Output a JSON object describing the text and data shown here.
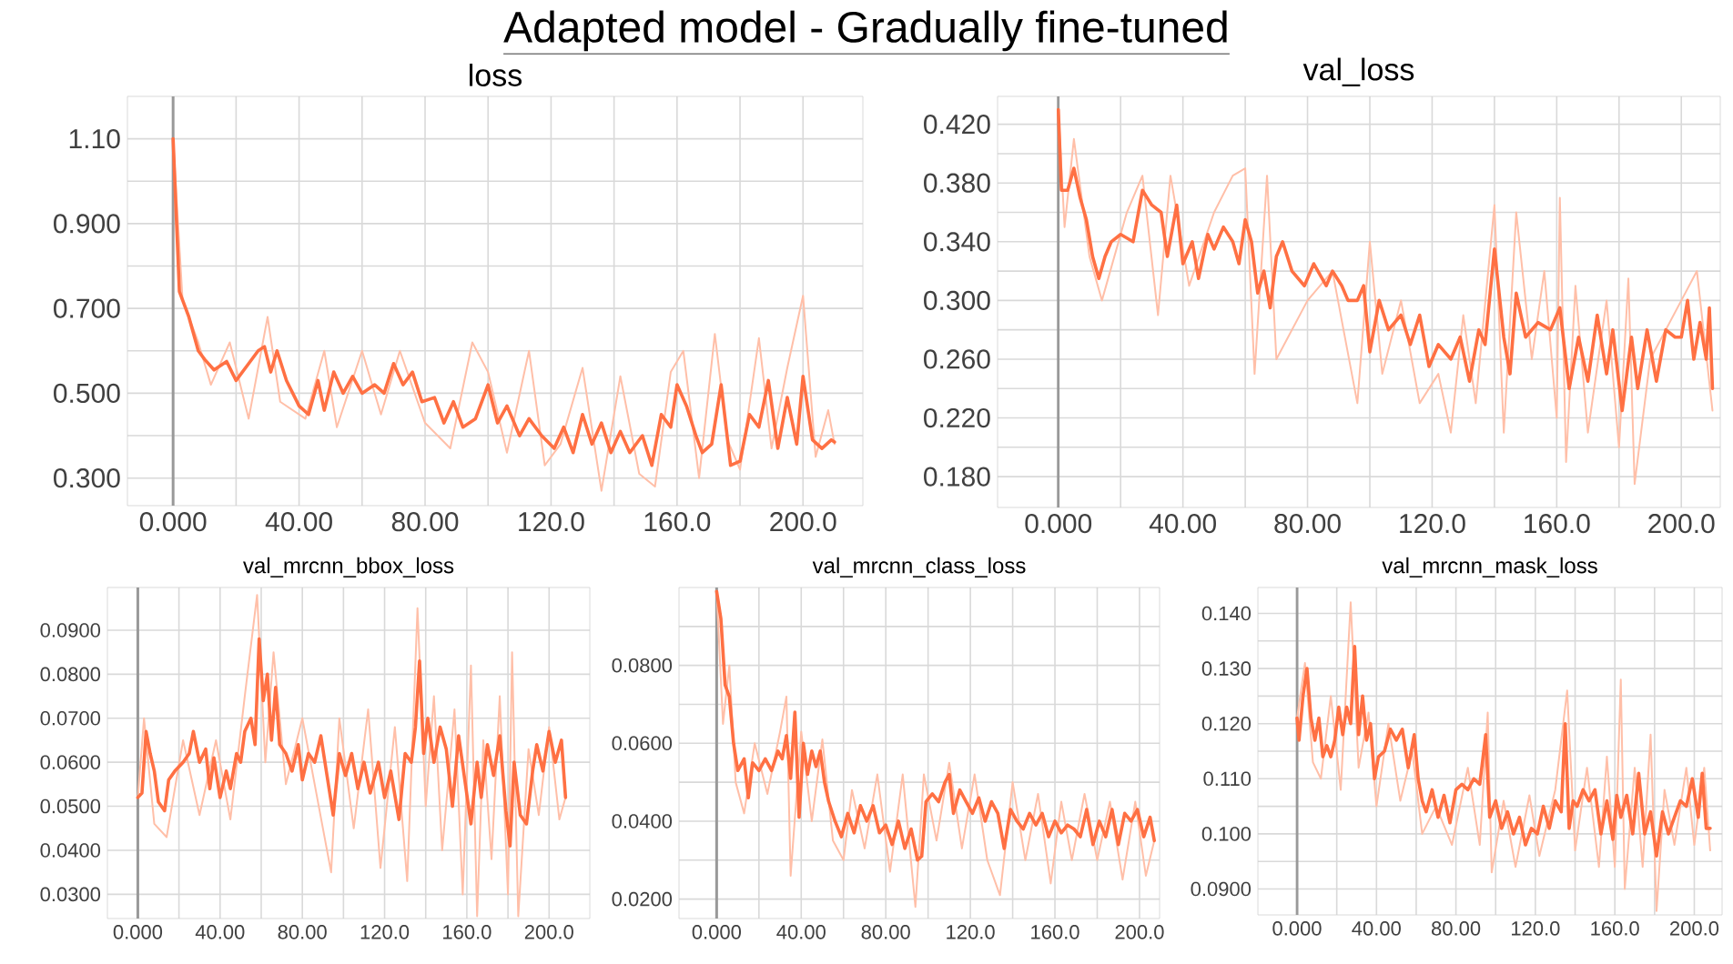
{
  "chart_data": [
    {
      "type": "line",
      "title": "Adapted model -  Gradually fine-tuned",
      "subtitle": "loss",
      "grid": true,
      "xlim": [
        -14.5,
        219
      ],
      "ylim": [
        0.235,
        1.2
      ],
      "xticks": [
        {
          "value": 0,
          "label": "0.000"
        },
        {
          "value": 20,
          "label": null
        },
        {
          "value": 40,
          "label": "40.00"
        },
        {
          "value": 60,
          "label": null
        },
        {
          "value": 80,
          "label": "80.00"
        },
        {
          "value": 100,
          "label": null
        },
        {
          "value": 120,
          "label": "120.0"
        },
        {
          "value": 140,
          "label": null
        },
        {
          "value": 160,
          "label": "160.0"
        },
        {
          "value": 180,
          "label": null
        },
        {
          "value": 200,
          "label": "200.0"
        }
      ],
      "yticks": [
        {
          "value": 0.3,
          "label": "0.300"
        },
        {
          "value": 0.4,
          "label": null
        },
        {
          "value": 0.5,
          "label": "0.500"
        },
        {
          "value": 0.6,
          "label": null
        },
        {
          "value": 0.7,
          "label": "0.700"
        },
        {
          "value": 0.8,
          "label": null
        },
        {
          "value": 0.9,
          "label": "0.900"
        },
        {
          "value": 1.0,
          "label": null
        },
        {
          "value": 1.1,
          "label": "1.10"
        }
      ],
      "ref_lines": [
        {
          "axis": "x",
          "value": 0,
          "color": "#999999"
        }
      ],
      "series": [
        {
          "color": "#ffbfa8",
          "x": [
            0,
            3,
            8,
            12,
            18,
            24,
            30,
            34,
            42,
            48,
            52,
            60,
            66,
            72,
            80,
            88,
            95,
            100,
            106,
            113,
            118,
            123,
            130,
            136,
            142,
            148,
            153,
            158,
            162,
            167,
            172,
            176,
            180,
            186,
            190,
            195,
            200,
            204,
            208,
            210
          ],
          "values": [
            1.1,
            0.72,
            0.62,
            0.52,
            0.62,
            0.44,
            0.68,
            0.48,
            0.44,
            0.6,
            0.42,
            0.6,
            0.45,
            0.6,
            0.43,
            0.37,
            0.62,
            0.55,
            0.36,
            0.6,
            0.33,
            0.38,
            0.56,
            0.27,
            0.54,
            0.31,
            0.28,
            0.55,
            0.6,
            0.3,
            0.64,
            0.39,
            0.32,
            0.63,
            0.37,
            0.56,
            0.73,
            0.35,
            0.46,
            0.38
          ]
        },
        {
          "color": "#ff7043",
          "x": [
            0,
            2,
            5,
            8,
            10,
            13,
            17,
            20,
            24,
            27,
            29,
            31,
            33,
            36,
            40,
            43,
            46,
            48,
            51,
            54,
            57,
            60,
            64,
            67,
            70,
            73,
            76,
            79,
            83,
            86,
            89,
            92,
            96,
            100,
            103,
            106,
            110,
            113,
            117,
            121,
            124,
            127,
            130,
            133,
            136,
            139,
            142,
            145,
            149,
            152,
            155,
            158,
            160,
            163,
            166,
            168,
            171,
            174,
            177,
            180,
            183,
            186,
            189,
            192,
            195,
            198,
            200,
            203,
            206,
            209,
            210
          ],
          "values": [
            1.1,
            0.74,
            0.68,
            0.6,
            0.58,
            0.555,
            0.575,
            0.53,
            0.57,
            0.6,
            0.61,
            0.55,
            0.6,
            0.53,
            0.47,
            0.45,
            0.53,
            0.46,
            0.55,
            0.5,
            0.54,
            0.5,
            0.52,
            0.5,
            0.57,
            0.52,
            0.55,
            0.48,
            0.49,
            0.43,
            0.48,
            0.42,
            0.44,
            0.52,
            0.43,
            0.47,
            0.4,
            0.44,
            0.4,
            0.37,
            0.42,
            0.36,
            0.45,
            0.38,
            0.43,
            0.36,
            0.41,
            0.36,
            0.4,
            0.33,
            0.45,
            0.42,
            0.52,
            0.47,
            0.4,
            0.36,
            0.38,
            0.52,
            0.33,
            0.34,
            0.45,
            0.42,
            0.53,
            0.37,
            0.49,
            0.38,
            0.54,
            0.39,
            0.37,
            0.39,
            0.385
          ]
        }
      ]
    },
    {
      "type": "line",
      "title": "val_loss",
      "grid": true,
      "xlim": [
        -19.5,
        212.5
      ],
      "ylim": [
        0.159,
        0.439
      ],
      "xticks": [
        {
          "value": 0,
          "label": "0.000"
        },
        {
          "value": 20,
          "label": null
        },
        {
          "value": 40,
          "label": "40.00"
        },
        {
          "value": 60,
          "label": null
        },
        {
          "value": 80,
          "label": "80.00"
        },
        {
          "value": 100,
          "label": null
        },
        {
          "value": 120,
          "label": "120.0"
        },
        {
          "value": 140,
          "label": null
        },
        {
          "value": 160,
          "label": "160.0"
        },
        {
          "value": 180,
          "label": null
        },
        {
          "value": 200,
          "label": "200.0"
        }
      ],
      "yticks": [
        {
          "value": 0.18,
          "label": "0.180"
        },
        {
          "value": 0.2,
          "label": null
        },
        {
          "value": 0.22,
          "label": "0.220"
        },
        {
          "value": 0.24,
          "label": null
        },
        {
          "value": 0.26,
          "label": "0.260"
        },
        {
          "value": 0.28,
          "label": null
        },
        {
          "value": 0.3,
          "label": "0.300"
        },
        {
          "value": 0.32,
          "label": null
        },
        {
          "value": 0.34,
          "label": "0.340"
        },
        {
          "value": 0.36,
          "label": null
        },
        {
          "value": 0.38,
          "label": "0.380"
        },
        {
          "value": 0.4,
          "label": null
        },
        {
          "value": 0.42,
          "label": "0.420"
        }
      ],
      "ref_lines": [
        {
          "axis": "x",
          "value": 0,
          "color": "#999999"
        }
      ],
      "series": [
        {
          "color": "#ffbfa8",
          "x": [
            0,
            2,
            5,
            10,
            14,
            22,
            27,
            32,
            36,
            42,
            50,
            56,
            60,
            63,
            67,
            70,
            80,
            88,
            96,
            100,
            104,
            110,
            116,
            122,
            126,
            130,
            134,
            140,
            143,
            147,
            152,
            156,
            160,
            161,
            163,
            166,
            170,
            176,
            180,
            183,
            185,
            190,
            200,
            205,
            210
          ],
          "values": [
            0.43,
            0.35,
            0.41,
            0.33,
            0.3,
            0.36,
            0.385,
            0.29,
            0.385,
            0.31,
            0.36,
            0.385,
            0.39,
            0.25,
            0.385,
            0.26,
            0.3,
            0.32,
            0.23,
            0.34,
            0.25,
            0.3,
            0.23,
            0.25,
            0.21,
            0.29,
            0.23,
            0.365,
            0.21,
            0.36,
            0.26,
            0.32,
            0.22,
            0.37,
            0.19,
            0.31,
            0.21,
            0.3,
            0.2,
            0.315,
            0.175,
            0.26,
            0.3,
            0.32,
            0.225
          ]
        },
        {
          "color": "#ff7043",
          "x": [
            0,
            1,
            3,
            5,
            7,
            9,
            11,
            13,
            15,
            17,
            20,
            24,
            27,
            30,
            33,
            35,
            38,
            40,
            43,
            45,
            48,
            50,
            53,
            56,
            58,
            60,
            62,
            64,
            66,
            68,
            70,
            72,
            75,
            79,
            82,
            86,
            88,
            91,
            93,
            96,
            98,
            100,
            103,
            106,
            110,
            113,
            116,
            119,
            122,
            126,
            129,
            132,
            135,
            137,
            140,
            143,
            145,
            147,
            150,
            154,
            158,
            161,
            164,
            167,
            170,
            173,
            176,
            178,
            181,
            184,
            186,
            189,
            192,
            195,
            198,
            200,
            202,
            204,
            206,
            208,
            209,
            210
          ],
          "values": [
            0.43,
            0.375,
            0.375,
            0.39,
            0.37,
            0.355,
            0.33,
            0.315,
            0.33,
            0.34,
            0.345,
            0.34,
            0.375,
            0.365,
            0.36,
            0.33,
            0.365,
            0.325,
            0.34,
            0.315,
            0.345,
            0.335,
            0.35,
            0.34,
            0.325,
            0.355,
            0.34,
            0.305,
            0.32,
            0.295,
            0.33,
            0.34,
            0.32,
            0.31,
            0.325,
            0.31,
            0.32,
            0.31,
            0.3,
            0.3,
            0.31,
            0.265,
            0.3,
            0.28,
            0.29,
            0.27,
            0.29,
            0.255,
            0.27,
            0.26,
            0.275,
            0.245,
            0.28,
            0.27,
            0.335,
            0.275,
            0.25,
            0.305,
            0.275,
            0.285,
            0.28,
            0.295,
            0.24,
            0.275,
            0.245,
            0.29,
            0.25,
            0.28,
            0.225,
            0.275,
            0.24,
            0.28,
            0.245,
            0.28,
            0.275,
            0.275,
            0.3,
            0.26,
            0.285,
            0.26,
            0.295,
            0.24
          ]
        }
      ]
    },
    {
      "type": "line",
      "title": "val_mrcnn_bbox_loss",
      "grid": true,
      "xlim": [
        -14.8,
        219.8
      ],
      "ylim": [
        0.0245,
        0.0997
      ],
      "xticks": [
        {
          "value": 0,
          "label": "0.000"
        },
        {
          "value": 20,
          "label": null
        },
        {
          "value": 40,
          "label": "40.00"
        },
        {
          "value": 60,
          "label": null
        },
        {
          "value": 80,
          "label": "80.00"
        },
        {
          "value": 100,
          "label": null
        },
        {
          "value": 120,
          "label": "120.0"
        },
        {
          "value": 140,
          "label": null
        },
        {
          "value": 160,
          "label": "160.0"
        },
        {
          "value": 180,
          "label": null
        },
        {
          "value": 200,
          "label": "200.0"
        }
      ],
      "yticks": [
        {
          "value": 0.03,
          "label": "0.0300"
        },
        {
          "value": 0.04,
          "label": "0.0400"
        },
        {
          "value": 0.05,
          "label": "0.0500"
        },
        {
          "value": 0.06,
          "label": "0.0600"
        },
        {
          "value": 0.07,
          "label": "0.0700"
        },
        {
          "value": 0.08,
          "label": "0.0800"
        },
        {
          "value": 0.09,
          "label": "0.0900"
        }
      ],
      "ref_lines": [
        {
          "axis": "x",
          "value": 0,
          "color": "#999999"
        }
      ],
      "series": [
        {
          "color": "#ffbfa8",
          "x": [
            0,
            3,
            8,
            14,
            22,
            30,
            38,
            45,
            52,
            58,
            62,
            66,
            72,
            80,
            88,
            94,
            98,
            105,
            112,
            118,
            125,
            131,
            136,
            140,
            144,
            148,
            154,
            158,
            162,
            165,
            168,
            172,
            176,
            180,
            182,
            185,
            190,
            195,
            200,
            205,
            208
          ],
          "values": [
            0.052,
            0.07,
            0.046,
            0.043,
            0.065,
            0.048,
            0.065,
            0.047,
            0.075,
            0.098,
            0.06,
            0.085,
            0.055,
            0.07,
            0.05,
            0.035,
            0.07,
            0.045,
            0.072,
            0.036,
            0.068,
            0.033,
            0.095,
            0.05,
            0.075,
            0.04,
            0.072,
            0.03,
            0.082,
            0.025,
            0.065,
            0.038,
            0.075,
            0.03,
            0.085,
            0.025,
            0.063,
            0.048,
            0.068,
            0.047,
            0.052
          ]
        },
        {
          "color": "#ff7043",
          "x": [
            0,
            2,
            4,
            6,
            8,
            10,
            13,
            15,
            18,
            22,
            25,
            27,
            30,
            33,
            35,
            37,
            40,
            43,
            45,
            48,
            50,
            52,
            55,
            57,
            59,
            61,
            63,
            65,
            67,
            69,
            72,
            75,
            78,
            80,
            83,
            86,
            89,
            92,
            95,
            98,
            101,
            104,
            107,
            110,
            113,
            117,
            120,
            123,
            127,
            130,
            133,
            135,
            137,
            139,
            141,
            144,
            147,
            150,
            153,
            156,
            159,
            162,
            165,
            167,
            170,
            173,
            176,
            179,
            181,
            183,
            186,
            189,
            192,
            194,
            197,
            200,
            203,
            206,
            208
          ],
          "values": [
            0.052,
            0.053,
            0.067,
            0.062,
            0.058,
            0.051,
            0.049,
            0.056,
            0.058,
            0.06,
            0.062,
            0.067,
            0.06,
            0.063,
            0.054,
            0.061,
            0.052,
            0.058,
            0.054,
            0.062,
            0.06,
            0.067,
            0.07,
            0.064,
            0.088,
            0.074,
            0.08,
            0.065,
            0.077,
            0.064,
            0.062,
            0.058,
            0.064,
            0.056,
            0.062,
            0.06,
            0.066,
            0.057,
            0.048,
            0.062,
            0.057,
            0.062,
            0.054,
            0.06,
            0.053,
            0.06,
            0.052,
            0.058,
            0.047,
            0.062,
            0.06,
            0.068,
            0.083,
            0.062,
            0.07,
            0.06,
            0.068,
            0.063,
            0.05,
            0.066,
            0.056,
            0.046,
            0.06,
            0.052,
            0.064,
            0.057,
            0.066,
            0.049,
            0.041,
            0.06,
            0.048,
            0.046,
            0.058,
            0.064,
            0.058,
            0.067,
            0.06,
            0.065,
            0.052
          ]
        }
      ]
    },
    {
      "type": "line",
      "title": "val_mrcnn_class_loss",
      "grid": true,
      "xlim": [
        -17.8,
        209.5
      ],
      "ylim": [
        0.015,
        0.1
      ],
      "xticks": [
        {
          "value": 0,
          "label": "0.000"
        },
        {
          "value": 20,
          "label": null
        },
        {
          "value": 40,
          "label": "40.00"
        },
        {
          "value": 60,
          "label": null
        },
        {
          "value": 80,
          "label": "80.00"
        },
        {
          "value": 100,
          "label": null
        },
        {
          "value": 120,
          "label": "120.0"
        },
        {
          "value": 140,
          "label": null
        },
        {
          "value": 160,
          "label": "160.0"
        },
        {
          "value": 180,
          "label": null
        },
        {
          "value": 200,
          "label": "200.0"
        }
      ],
      "yticks": [
        {
          "value": 0.02,
          "label": "0.0200"
        },
        {
          "value": 0.03,
          "label": null
        },
        {
          "value": 0.04,
          "label": "0.0400"
        },
        {
          "value": 0.05,
          "label": null
        },
        {
          "value": 0.06,
          "label": "0.0600"
        },
        {
          "value": 0.07,
          "label": null
        },
        {
          "value": 0.08,
          "label": "0.0800"
        },
        {
          "value": 0.09,
          "label": null
        }
      ],
      "ref_lines": [
        {
          "axis": "x",
          "value": 0,
          "color": "#999999"
        }
      ],
      "series": [
        {
          "color": "#ffbfa8",
          "x": [
            0,
            3,
            6,
            9,
            13,
            18,
            24,
            30,
            33,
            35,
            40,
            45,
            50,
            55,
            60,
            64,
            70,
            76,
            82,
            88,
            94,
            98,
            104,
            110,
            116,
            122,
            128,
            134,
            140,
            146,
            152,
            158,
            163,
            168,
            174,
            180,
            186,
            192,
            198,
            203,
            207
          ],
          "values": [
            0.099,
            0.065,
            0.08,
            0.05,
            0.042,
            0.06,
            0.047,
            0.063,
            0.072,
            0.026,
            0.063,
            0.04,
            0.061,
            0.035,
            0.03,
            0.048,
            0.033,
            0.052,
            0.027,
            0.052,
            0.018,
            0.052,
            0.035,
            0.055,
            0.033,
            0.052,
            0.03,
            0.021,
            0.05,
            0.03,
            0.047,
            0.024,
            0.045,
            0.03,
            0.047,
            0.03,
            0.045,
            0.025,
            0.045,
            0.026,
            0.035
          ]
        },
        {
          "color": "#ff7043",
          "x": [
            0,
            2,
            4,
            6,
            8,
            10,
            13,
            15,
            17,
            20,
            23,
            26,
            29,
            31,
            33,
            35,
            37,
            39,
            41,
            43,
            45,
            47,
            49,
            51,
            53,
            56,
            59,
            62,
            65,
            68,
            71,
            74,
            77,
            80,
            83,
            86,
            89,
            92,
            95,
            97,
            99,
            102,
            105,
            108,
            110,
            112,
            115,
            118,
            121,
            124,
            127,
            130,
            133,
            136,
            139,
            142,
            145,
            148,
            151,
            154,
            157,
            160,
            163,
            166,
            169,
            172,
            175,
            178,
            181,
            184,
            187,
            190,
            193,
            196,
            199,
            202,
            205,
            207
          ],
          "values": [
            0.099,
            0.092,
            0.075,
            0.072,
            0.06,
            0.053,
            0.056,
            0.046,
            0.055,
            0.053,
            0.056,
            0.053,
            0.058,
            0.056,
            0.062,
            0.051,
            0.068,
            0.041,
            0.06,
            0.052,
            0.058,
            0.054,
            0.058,
            0.05,
            0.045,
            0.04,
            0.036,
            0.042,
            0.037,
            0.044,
            0.04,
            0.044,
            0.037,
            0.039,
            0.034,
            0.04,
            0.033,
            0.038,
            0.03,
            0.031,
            0.045,
            0.047,
            0.045,
            0.05,
            0.052,
            0.042,
            0.048,
            0.045,
            0.042,
            0.046,
            0.04,
            0.045,
            0.042,
            0.033,
            0.043,
            0.04,
            0.038,
            0.042,
            0.039,
            0.042,
            0.036,
            0.04,
            0.037,
            0.039,
            0.038,
            0.036,
            0.043,
            0.034,
            0.04,
            0.036,
            0.043,
            0.034,
            0.042,
            0.04,
            0.043,
            0.036,
            0.041,
            0.035
          ]
        }
      ]
    },
    {
      "type": "line",
      "title": "val_mrcnn_mask_loss",
      "grid": true,
      "xlim": [
        -19.7,
        214
      ],
      "ylim": [
        0.0853,
        0.1447
      ],
      "xticks": [
        {
          "value": 0,
          "label": "0.000"
        },
        {
          "value": 20,
          "label": null
        },
        {
          "value": 40,
          "label": "40.00"
        },
        {
          "value": 60,
          "label": null
        },
        {
          "value": 80,
          "label": "80.00"
        },
        {
          "value": 100,
          "label": null
        },
        {
          "value": 120,
          "label": "120.0"
        },
        {
          "value": 140,
          "label": null
        },
        {
          "value": 160,
          "label": "160.0"
        },
        {
          "value": 180,
          "label": null
        },
        {
          "value": 200,
          "label": "200.0"
        }
      ],
      "yticks": [
        {
          "value": 0.09,
          "label": "0.0900"
        },
        {
          "value": 0.095,
          "label": null
        },
        {
          "value": 0.1,
          "label": "0.100"
        },
        {
          "value": 0.105,
          "label": null
        },
        {
          "value": 0.11,
          "label": "0.110"
        },
        {
          "value": 0.115,
          "label": null
        },
        {
          "value": 0.12,
          "label": "0.120"
        },
        {
          "value": 0.125,
          "label": null
        },
        {
          "value": 0.13,
          "label": "0.130"
        },
        {
          "value": 0.135,
          "label": null
        },
        {
          "value": 0.14,
          "label": "0.140"
        }
      ],
      "ref_lines": [
        {
          "axis": "x",
          "value": 0,
          "color": "#999999"
        }
      ],
      "series": [
        {
          "color": "#ffbfa8",
          "x": [
            0,
            4,
            8,
            12,
            17,
            22,
            27,
            31,
            36,
            40,
            46,
            52,
            58,
            63,
            70,
            78,
            86,
            92,
            96,
            98,
            104,
            110,
            117,
            122,
            130,
            136,
            140,
            146,
            152,
            156,
            160,
            163,
            165,
            170,
            174,
            178,
            181,
            185,
            190,
            196,
            200,
            205,
            208
          ],
          "values": [
            0.121,
            0.131,
            0.113,
            0.11,
            0.125,
            0.108,
            0.142,
            0.112,
            0.122,
            0.105,
            0.12,
            0.106,
            0.115,
            0.1,
            0.105,
            0.098,
            0.112,
            0.098,
            0.122,
            0.093,
            0.106,
            0.094,
            0.107,
            0.096,
            0.108,
            0.126,
            0.097,
            0.112,
            0.094,
            0.114,
            0.094,
            0.128,
            0.09,
            0.112,
            0.094,
            0.118,
            0.086,
            0.108,
            0.098,
            0.112,
            0.098,
            0.112,
            0.097
          ]
        },
        {
          "color": "#ff7043",
          "x": [
            0,
            1,
            3,
            5,
            7,
            9,
            11,
            13,
            15,
            17,
            19,
            21,
            23,
            25,
            27,
            29,
            31,
            33,
            35,
            37,
            39,
            41,
            44,
            47,
            50,
            53,
            56,
            59,
            61,
            63,
            65,
            68,
            71,
            74,
            77,
            80,
            83,
            86,
            89,
            92,
            95,
            97,
            100,
            103,
            106,
            109,
            112,
            115,
            118,
            121,
            124,
            127,
            130,
            133,
            135,
            137,
            139,
            141,
            144,
            147,
            150,
            153,
            156,
            159,
            161,
            163,
            166,
            169,
            172,
            175,
            178,
            181,
            184,
            187,
            190,
            193,
            196,
            199,
            202,
            204,
            206,
            208
          ],
          "values": [
            0.121,
            0.117,
            0.125,
            0.13,
            0.121,
            0.117,
            0.121,
            0.114,
            0.116,
            0.114,
            0.117,
            0.123,
            0.118,
            0.123,
            0.12,
            0.134,
            0.118,
            0.125,
            0.117,
            0.12,
            0.11,
            0.114,
            0.115,
            0.119,
            0.117,
            0.119,
            0.112,
            0.118,
            0.11,
            0.106,
            0.104,
            0.108,
            0.103,
            0.107,
            0.102,
            0.108,
            0.109,
            0.108,
            0.11,
            0.109,
            0.118,
            0.103,
            0.106,
            0.101,
            0.104,
            0.1,
            0.103,
            0.098,
            0.101,
            0.1,
            0.105,
            0.101,
            0.106,
            0.104,
            0.12,
            0.101,
            0.106,
            0.105,
            0.108,
            0.106,
            0.108,
            0.1,
            0.106,
            0.099,
            0.107,
            0.103,
            0.107,
            0.1,
            0.111,
            0.1,
            0.104,
            0.096,
            0.104,
            0.1,
            0.103,
            0.106,
            0.105,
            0.11,
            0.103,
            0.111,
            0.101,
            0.101
          ]
        }
      ]
    }
  ]
}
